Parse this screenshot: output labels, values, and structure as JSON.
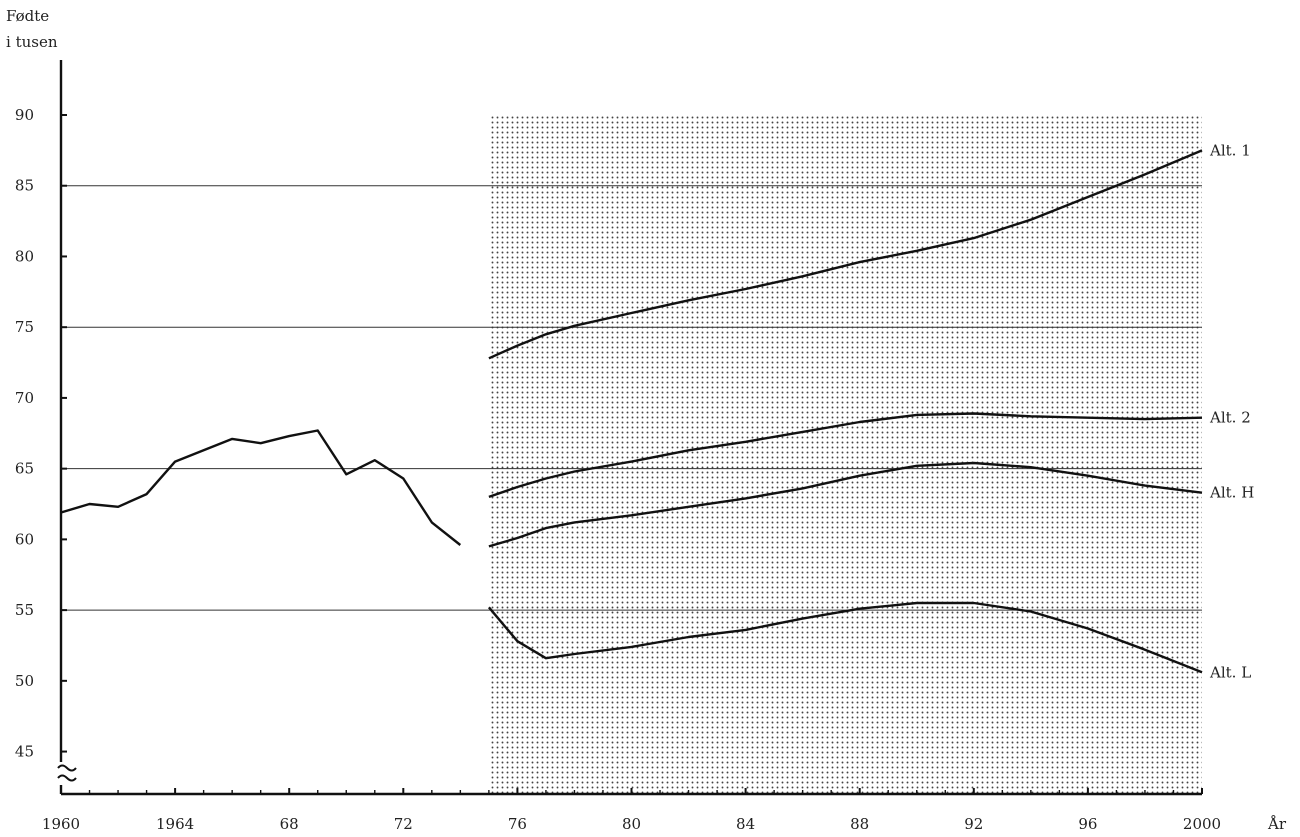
{
  "chart_data": {
    "type": "line",
    "title": "",
    "ylabel": [
      "Fødte",
      "i tusen"
    ],
    "xlabel": "År",
    "xlim": [
      1960,
      2000
    ],
    "ylim": [
      42,
      90
    ],
    "yticks": [
      45,
      50,
      55,
      60,
      65,
      70,
      75,
      80,
      85,
      90
    ],
    "ytick_labels": [
      "45",
      "50",
      "55",
      "60",
      "65",
      "70",
      "75",
      "80",
      "85",
      "90"
    ],
    "xticks": [
      1960,
      1964,
      1968,
      1972,
      1976,
      1980,
      1984,
      1988,
      1992,
      1996,
      2000
    ],
    "xtick_labels": [
      "1960",
      "1964",
      "68",
      "72",
      "76",
      "80",
      "84",
      "88",
      "92",
      "96",
      "2000"
    ],
    "gridlines_y": [
      55,
      65,
      75,
      85
    ],
    "shaded_region": {
      "x_from": 1975,
      "x_to": 2000,
      "y_to": 90,
      "pattern": "dotted"
    },
    "axis_break": true,
    "series": [
      {
        "name": "",
        "x": [
          1960,
          1961,
          1962,
          1963,
          1964,
          1965,
          1966,
          1967,
          1968,
          1969,
          1970,
          1971,
          1972,
          1973,
          1974
        ],
        "values": [
          61.9,
          62.5,
          62.3,
          63.2,
          65.5,
          66.3,
          67.1,
          66.8,
          67.3,
          67.7,
          64.6,
          65.6,
          64.3,
          61.2,
          59.6
        ]
      },
      {
        "name": "Alt. 1",
        "x": [
          1975,
          1976,
          1977,
          1978,
          1980,
          1982,
          1984,
          1986,
          1988,
          1990,
          1992,
          1994,
          1996,
          1998,
          2000
        ],
        "values": [
          72.8,
          73.7,
          74.5,
          75.1,
          76.0,
          76.9,
          77.7,
          78.6,
          79.6,
          80.4,
          81.3,
          82.6,
          84.2,
          85.8,
          87.5
        ]
      },
      {
        "name": "Alt. 2",
        "x": [
          1975,
          1976,
          1977,
          1978,
          1980,
          1982,
          1984,
          1986,
          1988,
          1990,
          1992,
          1994,
          1996,
          1998,
          2000
        ],
        "values": [
          63.0,
          63.7,
          64.3,
          64.8,
          65.5,
          66.3,
          66.9,
          67.6,
          68.3,
          68.8,
          68.9,
          68.7,
          68.6,
          68.5,
          68.6
        ]
      },
      {
        "name": "Alt. H",
        "x": [
          1975,
          1976,
          1977,
          1978,
          1980,
          1982,
          1984,
          1986,
          1988,
          1990,
          1992,
          1994,
          1996,
          1998,
          2000
        ],
        "values": [
          59.5,
          60.1,
          60.8,
          61.2,
          61.7,
          62.3,
          62.9,
          63.6,
          64.5,
          65.2,
          65.4,
          65.1,
          64.5,
          63.8,
          63.3
        ]
      },
      {
        "name": "Alt. L",
        "x": [
          1975,
          1976,
          1977,
          1978,
          1980,
          1982,
          1984,
          1986,
          1988,
          1990,
          1992,
          1994,
          1996,
          1998,
          2000
        ],
        "values": [
          55.2,
          52.8,
          51.6,
          51.9,
          52.4,
          53.1,
          53.6,
          54.4,
          55.1,
          55.5,
          55.5,
          54.9,
          53.7,
          52.2,
          50.6
        ]
      }
    ]
  }
}
